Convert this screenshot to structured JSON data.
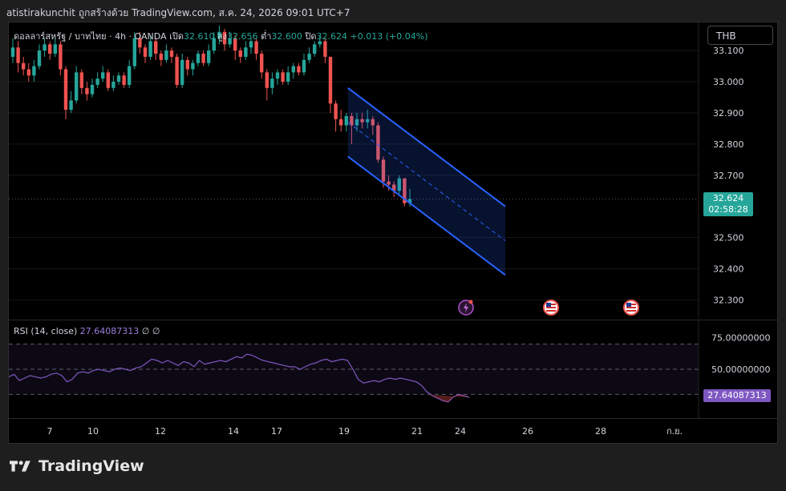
{
  "header": {
    "caption": "atistirakunchit ถูกสร้างด้วย TradingView.com, ส.ค. 24, 2026 09:01 UTC+7"
  },
  "legend": {
    "symbol": "ดอลลาร์สหรัฐ / บาทไทย · 4h · OANDA",
    "open_label": "เปิด",
    "open": "32.610",
    "high_label": "สูง",
    "high": "32.656",
    "low_label": "ต่ำ",
    "low": "32.600",
    "close_label": "ปิด",
    "close": "32.624",
    "change": "+0.013 (+0.04%)"
  },
  "currency_button": "THB",
  "last_price": {
    "value": "32.624",
    "countdown": "02:58:28"
  },
  "rsi": {
    "label": "RSI (14, close)",
    "value": "27.64087313",
    "flags": "∅  ∅"
  },
  "footer": {
    "brand": "TradingView"
  },
  "colors": {
    "up": "#26a69a",
    "down": "#ef5350",
    "channel": "#2962ff",
    "rsi": "#7e57c2",
    "background": "#000000"
  },
  "icons": [
    "lightning-event-icon",
    "us-flag-icon",
    "us-flag-icon"
  ],
  "chart_data": [
    {
      "type": "candlestick",
      "title": "",
      "y_ticks": [
        "33.100",
        "33.000",
        "32.900",
        "32.800",
        "32.700",
        "32.500",
        "32.400",
        "32.300"
      ],
      "ylim": [
        32.26,
        33.18
      ],
      "x_ticks": [
        "7",
        "10",
        "12",
        "14",
        "17",
        "19",
        "21",
        "24",
        "26",
        "28",
        "ก.ย."
      ],
      "grid": true,
      "series": [
        {
          "o": 33.08,
          "c": 33.11,
          "h": 33.14,
          "l": 33.06
        },
        {
          "o": 33.11,
          "c": 33.06,
          "h": 33.13,
          "l": 33.03
        },
        {
          "o": 33.06,
          "c": 33.04,
          "h": 33.08,
          "l": 33.02
        },
        {
          "o": 33.04,
          "c": 33.02,
          "h": 33.06,
          "l": 33.0
        },
        {
          "o": 33.02,
          "c": 33.05,
          "h": 33.07,
          "l": 33.0
        },
        {
          "o": 33.05,
          "c": 33.1,
          "h": 33.12,
          "l": 33.04
        },
        {
          "o": 33.1,
          "c": 33.12,
          "h": 33.14,
          "l": 33.08
        },
        {
          "o": 33.12,
          "c": 33.09,
          "h": 33.13,
          "l": 33.07
        },
        {
          "o": 33.09,
          "c": 33.12,
          "h": 33.14,
          "l": 33.08
        },
        {
          "o": 33.12,
          "c": 33.04,
          "h": 33.13,
          "l": 33.02
        },
        {
          "o": 33.04,
          "c": 32.91,
          "h": 33.05,
          "l": 32.88
        },
        {
          "o": 32.91,
          "c": 32.94,
          "h": 32.97,
          "l": 32.9
        },
        {
          "o": 32.94,
          "c": 33.03,
          "h": 33.05,
          "l": 32.93
        },
        {
          "o": 33.03,
          "c": 32.98,
          "h": 33.04,
          "l": 32.96
        },
        {
          "o": 32.98,
          "c": 32.96,
          "h": 33.0,
          "l": 32.94
        },
        {
          "o": 32.96,
          "c": 32.99,
          "h": 33.01,
          "l": 32.95
        },
        {
          "o": 32.99,
          "c": 33.01,
          "h": 33.03,
          "l": 32.98
        },
        {
          "o": 33.01,
          "c": 33.03,
          "h": 33.05,
          "l": 33.0
        },
        {
          "o": 33.03,
          "c": 32.98,
          "h": 33.04,
          "l": 32.97
        },
        {
          "o": 32.98,
          "c": 33.0,
          "h": 33.02,
          "l": 32.97
        },
        {
          "o": 33.0,
          "c": 33.02,
          "h": 33.03,
          "l": 32.99
        },
        {
          "o": 33.02,
          "c": 32.99,
          "h": 33.03,
          "l": 32.98
        },
        {
          "o": 32.99,
          "c": 33.05,
          "h": 33.07,
          "l": 32.98
        },
        {
          "o": 33.05,
          "c": 33.14,
          "h": 33.16,
          "l": 33.04
        },
        {
          "o": 33.14,
          "c": 33.11,
          "h": 33.16,
          "l": 33.09
        },
        {
          "o": 33.11,
          "c": 33.08,
          "h": 33.12,
          "l": 33.06
        },
        {
          "o": 33.08,
          "c": 33.13,
          "h": 33.15,
          "l": 33.07
        },
        {
          "o": 33.13,
          "c": 33.09,
          "h": 33.14,
          "l": 33.07
        },
        {
          "o": 33.09,
          "c": 33.07,
          "h": 33.1,
          "l": 33.05
        },
        {
          "o": 33.07,
          "c": 33.1,
          "h": 33.12,
          "l": 33.06
        },
        {
          "o": 33.1,
          "c": 33.08,
          "h": 33.11,
          "l": 33.06
        },
        {
          "o": 33.08,
          "c": 32.99,
          "h": 33.09,
          "l": 32.98
        },
        {
          "o": 32.99,
          "c": 33.07,
          "h": 33.09,
          "l": 32.98
        },
        {
          "o": 33.07,
          "c": 33.04,
          "h": 33.08,
          "l": 33.02
        },
        {
          "o": 33.04,
          "c": 33.06,
          "h": 33.07,
          "l": 33.02
        },
        {
          "o": 33.06,
          "c": 33.09,
          "h": 33.1,
          "l": 33.05
        },
        {
          "o": 33.09,
          "c": 33.06,
          "h": 33.1,
          "l": 33.05
        },
        {
          "o": 33.06,
          "c": 33.1,
          "h": 33.12,
          "l": 33.05
        },
        {
          "o": 33.1,
          "c": 33.14,
          "h": 33.16,
          "l": 33.09
        },
        {
          "o": 33.14,
          "c": 33.16,
          "h": 33.18,
          "l": 33.12
        },
        {
          "o": 33.16,
          "c": 33.12,
          "h": 33.17,
          "l": 33.1
        },
        {
          "o": 33.12,
          "c": 33.14,
          "h": 33.16,
          "l": 33.11
        },
        {
          "o": 33.14,
          "c": 33.1,
          "h": 33.15,
          "l": 33.07
        },
        {
          "o": 33.1,
          "c": 33.08,
          "h": 33.11,
          "l": 33.06
        },
        {
          "o": 33.08,
          "c": 33.11,
          "h": 33.13,
          "l": 33.07
        },
        {
          "o": 33.11,
          "c": 33.13,
          "h": 33.14,
          "l": 33.09
        },
        {
          "o": 33.13,
          "c": 33.09,
          "h": 33.14,
          "l": 33.07
        },
        {
          "o": 33.09,
          "c": 33.03,
          "h": 33.1,
          "l": 33.01
        },
        {
          "o": 33.03,
          "c": 32.98,
          "h": 33.04,
          "l": 32.94
        },
        {
          "o": 32.98,
          "c": 33.01,
          "h": 33.03,
          "l": 32.96
        },
        {
          "o": 33.01,
          "c": 33.03,
          "h": 33.04,
          "l": 32.99
        },
        {
          "o": 33.03,
          "c": 33.0,
          "h": 33.04,
          "l": 32.99
        },
        {
          "o": 33.0,
          "c": 33.03,
          "h": 33.05,
          "l": 32.99
        },
        {
          "o": 33.03,
          "c": 33.05,
          "h": 33.06,
          "l": 33.01
        },
        {
          "o": 33.05,
          "c": 33.03,
          "h": 33.06,
          "l": 33.02
        },
        {
          "o": 33.03,
          "c": 33.07,
          "h": 33.09,
          "l": 33.02
        },
        {
          "o": 33.07,
          "c": 33.09,
          "h": 33.11,
          "l": 33.06
        },
        {
          "o": 33.09,
          "c": 33.12,
          "h": 33.13,
          "l": 33.08
        },
        {
          "o": 33.12,
          "c": 33.13,
          "h": 33.15,
          "l": 33.11
        },
        {
          "o": 33.13,
          "c": 33.08,
          "h": 33.14,
          "l": 33.06
        },
        {
          "o": 33.08,
          "c": 32.93,
          "h": 33.08,
          "l": 32.9
        },
        {
          "o": 32.93,
          "c": 32.88,
          "h": 32.94,
          "l": 32.84
        },
        {
          "o": 32.88,
          "c": 32.86,
          "h": 32.91,
          "l": 32.84
        },
        {
          "o": 32.86,
          "c": 32.89,
          "h": 32.9,
          "l": 32.84
        },
        {
          "o": 32.89,
          "c": 32.86,
          "h": 32.9,
          "l": 32.8
        },
        {
          "o": 32.86,
          "c": 32.88,
          "h": 32.9,
          "l": 32.84
        },
        {
          "o": 32.88,
          "c": 32.87,
          "h": 32.9,
          "l": 32.85
        },
        {
          "o": 32.87,
          "c": 32.88,
          "h": 32.91,
          "l": 32.85
        },
        {
          "o": 32.88,
          "c": 32.86,
          "h": 32.89,
          "l": 32.83
        },
        {
          "o": 32.86,
          "c": 32.75,
          "h": 32.87,
          "l": 32.74
        },
        {
          "o": 32.75,
          "c": 32.68,
          "h": 32.76,
          "l": 32.66
        },
        {
          "o": 32.68,
          "c": 32.67,
          "h": 32.7,
          "l": 32.65
        },
        {
          "o": 32.67,
          "c": 32.65,
          "h": 32.68,
          "l": 32.63
        },
        {
          "o": 32.65,
          "c": 32.69,
          "h": 32.7,
          "l": 32.64
        },
        {
          "o": 32.69,
          "c": 32.61,
          "h": 32.69,
          "l": 32.6
        },
        {
          "o": 32.61,
          "c": 32.624,
          "h": 32.656,
          "l": 32.6
        }
      ],
      "channel": {
        "upper": {
          "from": [
            63,
            32.98
          ],
          "to": [
            90,
            32.6
          ]
        },
        "lower": {
          "from": [
            63,
            32.76
          ],
          "to": [
            90,
            32.38
          ]
        },
        "middle_dashed": true
      }
    },
    {
      "type": "line",
      "name": "RSI (14, close)",
      "ylim": [
        15,
        85
      ],
      "y_ticks": [
        "75.00000000",
        "50.00000000"
      ],
      "bands": [
        30,
        50,
        70
      ],
      "values": [
        44,
        46,
        41,
        43,
        45,
        44,
        43,
        44,
        46,
        47,
        45,
        40,
        42,
        47,
        48,
        47,
        49,
        50,
        49,
        48,
        50,
        51,
        50,
        49,
        51,
        52,
        55,
        58,
        57,
        55,
        57,
        55,
        53,
        56,
        55,
        52,
        57,
        54,
        55,
        56,
        57,
        56,
        58,
        60,
        59,
        62,
        61,
        59,
        57,
        56,
        55,
        54,
        53,
        52,
        52,
        50,
        52,
        54,
        55,
        57,
        58,
        56,
        57,
        58,
        57,
        50,
        42,
        39,
        40,
        41,
        40,
        42,
        43,
        42,
        43,
        42,
        41,
        40,
        37,
        32,
        29,
        27,
        25,
        24,
        28,
        30,
        29,
        27.64
      ]
    }
  ]
}
